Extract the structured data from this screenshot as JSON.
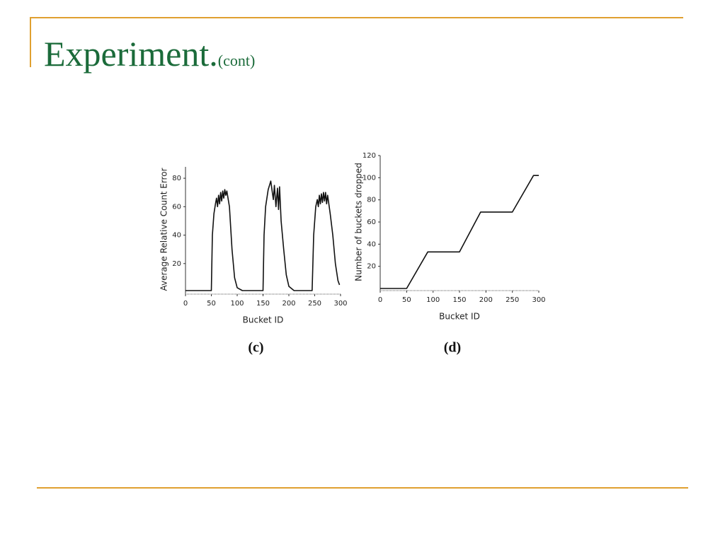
{
  "slide": {
    "title": "Experiment.",
    "title_suffix": "(cont)"
  },
  "chart_data": [
    {
      "type": "line",
      "caption": "(c)",
      "x_label": "Bucket ID",
      "y_label": "Average Relative Count Error",
      "xlim": [
        0,
        300
      ],
      "ylim": [
        0,
        88
      ],
      "xticks": [
        0,
        50,
        100,
        150,
        200,
        250,
        300
      ],
      "yticks": [
        20,
        40,
        60,
        80
      ],
      "color": "#111111",
      "x": [
        0,
        50,
        52,
        55,
        58,
        60,
        62,
        64,
        66,
        68,
        70,
        72,
        74,
        76,
        78,
        80,
        85,
        90,
        95,
        100,
        110,
        150,
        152,
        155,
        160,
        165,
        168,
        170,
        172,
        175,
        178,
        180,
        182,
        185,
        190,
        195,
        200,
        210,
        245,
        248,
        252,
        255,
        257,
        259,
        261,
        263,
        265,
        267,
        269,
        271,
        273,
        275,
        280,
        285,
        290,
        295,
        298
      ],
      "values": [
        1,
        1,
        40,
        55,
        62,
        66,
        60,
        68,
        62,
        70,
        64,
        71,
        66,
        72,
        68,
        71,
        60,
        30,
        10,
        3,
        1,
        1,
        40,
        60,
        72,
        78,
        70,
        65,
        75,
        60,
        73,
        58,
        74,
        50,
        30,
        12,
        4,
        1,
        1,
        40,
        60,
        65,
        60,
        68,
        62,
        69,
        63,
        70,
        64,
        70,
        62,
        68,
        55,
        40,
        20,
        8,
        5
      ]
    },
    {
      "type": "line",
      "caption": "(d)",
      "x_label": "Bucket ID",
      "y_label": "Number of buckets dropped",
      "xlim": [
        0,
        300
      ],
      "ylim": [
        0,
        120
      ],
      "xticks": [
        0,
        50,
        100,
        150,
        200,
        250,
        300
      ],
      "yticks": [
        20,
        40,
        60,
        80,
        100,
        120
      ],
      "color": "#111111",
      "x": [
        0,
        50,
        90,
        150,
        190,
        250,
        290,
        300
      ],
      "values": [
        0,
        0,
        33,
        33,
        69,
        69,
        102,
        102
      ]
    }
  ]
}
